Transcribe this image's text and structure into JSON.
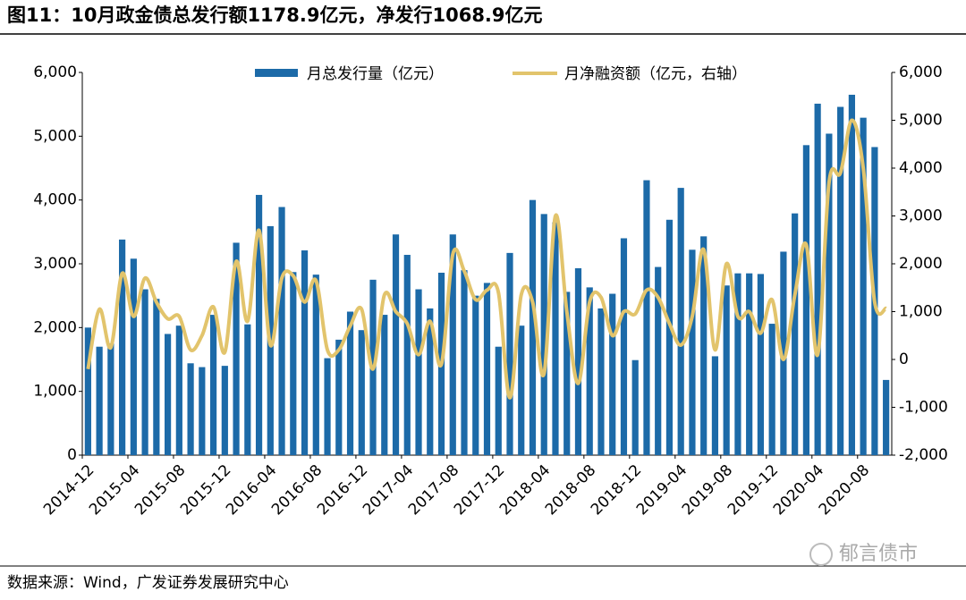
{
  "chart_data": {
    "type": "bar",
    "title": "图11：10月政金债总发行额1178.9亿元，净发行1068.9亿元",
    "source": "数据来源：Wind，广发证券发展研究中心",
    "watermark": "郁言债市",
    "categories": [
      "2014-12",
      null,
      null,
      null,
      "2015-04",
      null,
      null,
      null,
      "2015-08",
      null,
      null,
      null,
      "2015-12",
      null,
      null,
      null,
      "2016-04",
      null,
      null,
      null,
      "2016-08",
      null,
      null,
      null,
      "2016-12",
      null,
      null,
      null,
      "2017-04",
      null,
      null,
      null,
      "2017-08",
      null,
      null,
      null,
      "2017-12",
      null,
      null,
      null,
      "2018-04",
      null,
      null,
      null,
      "2018-08",
      null,
      null,
      null,
      "2018-12",
      null,
      null,
      null,
      "2019-04",
      null,
      null,
      null,
      "2019-08",
      null,
      null,
      null,
      "2019-12",
      null,
      null,
      null,
      "2020-04",
      null,
      null,
      null,
      "2020-08",
      null,
      null
    ],
    "series": [
      {
        "name": "月总发行量（亿元）",
        "type": "bar",
        "color": "#1c6aa8",
        "values": [
          2000,
          1700,
          1750,
          3380,
          3080,
          2600,
          2450,
          1900,
          2030,
          1440,
          1380,
          2200,
          1400,
          3330,
          2050,
          4080,
          3590,
          3890,
          2870,
          3210,
          2830,
          1520,
          1810,
          2250,
          1960,
          2750,
          2200,
          3460,
          3140,
          2600,
          2300,
          2860,
          3460,
          2900,
          2500,
          2700,
          1700,
          3170,
          2030,
          4000,
          3780,
          3650,
          2560,
          2930,
          2630,
          2300,
          2530,
          3400,
          1490,
          4310,
          2950,
          3690,
          4190,
          3220,
          3430,
          1550,
          2660,
          2850,
          2850,
          2840,
          2060,
          3190,
          3790,
          4860,
          5510,
          5040,
          5460,
          5650,
          5290,
          4830,
          1178.9
        ]
      },
      {
        "name": "月净融资额（亿元，右轴）",
        "type": "line",
        "axis": "y2",
        "color": "#e2c46c",
        "values": [
          -200,
          1050,
          250,
          1800,
          900,
          1700,
          1200,
          850,
          900,
          200,
          500,
          1100,
          150,
          2050,
          800,
          2700,
          300,
          1700,
          1750,
          1200,
          1650,
          200,
          200,
          700,
          1050,
          -200,
          1350,
          1000,
          750,
          100,
          800,
          -100,
          2200,
          1850,
          1250,
          1450,
          1400,
          -800,
          1350,
          1200,
          -300,
          3000,
          1000,
          -500,
          1200,
          1300,
          500,
          1000,
          950,
          1450,
          1300,
          750,
          300,
          900,
          2300,
          200,
          2000,
          900,
          1000,
          550,
          1250,
          0,
          1350,
          2400,
          100,
          3700,
          3900,
          5000,
          4000,
          1200,
          1068.9
        ]
      }
    ],
    "ylim": [
      0,
      6000
    ],
    "yticks": [
      0,
      {
        "value": 1000,
        "label": "1,000"
      },
      {
        "value": 2000,
        "label": "2,000"
      },
      {
        "value": 3000,
        "label": "3,000"
      },
      {
        "value": 4000,
        "label": "4,000"
      },
      {
        "value": 5000,
        "label": "5,000"
      },
      {
        "value": 6000,
        "label": "6,000"
      }
    ],
    "y2lim": [
      -2000,
      6000
    ],
    "y2ticks": [
      {
        "value": -2000,
        "label": "-2,000"
      },
      {
        "value": -1000,
        "label": "-1,000"
      },
      0,
      {
        "value": 1000,
        "label": "1,000"
      },
      {
        "value": 2000,
        "label": "2,000"
      },
      {
        "value": 3000,
        "label": "3,000"
      },
      {
        "value": 4000,
        "label": "4,000"
      },
      {
        "value": 5000,
        "label": "5,000"
      },
      {
        "value": 6000,
        "label": "6,000"
      }
    ],
    "legend": "top"
  }
}
